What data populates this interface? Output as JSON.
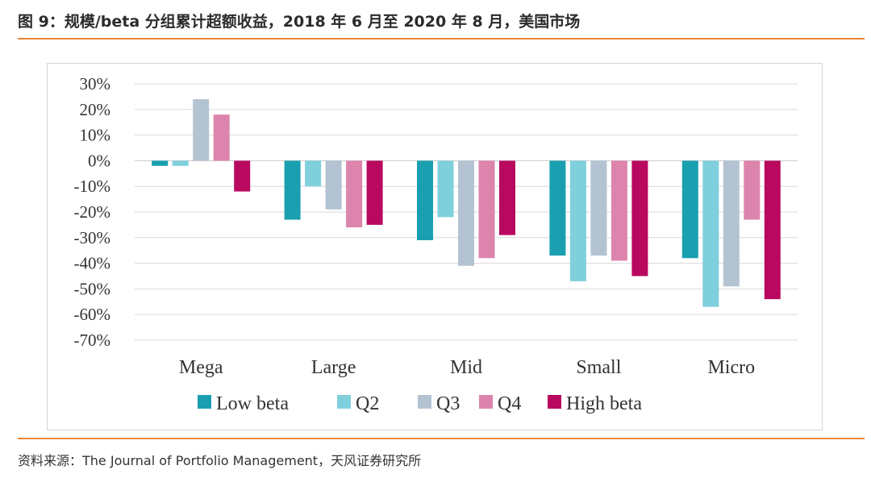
{
  "header": {
    "title": "图 9：规模/beta 分组累计超额收益，2018 年 6 月至 2020 年 8 月，美国市场"
  },
  "footer": {
    "source": "资料来源：The Journal of Portfolio Management，天风证券研究所"
  },
  "colors": {
    "accent_rule": "#e8873a",
    "series": [
      "#1a9fb0",
      "#7fd0dc",
      "#b4c3d2",
      "#dd84ad",
      "#b8095f"
    ]
  },
  "chart_data": {
    "type": "bar",
    "title": "",
    "xlabel": "",
    "ylabel": "",
    "categories": [
      "Mega",
      "Large",
      "Mid",
      "Small",
      "Micro"
    ],
    "series": [
      {
        "name": "Low beta",
        "values": [
          -2,
          -23,
          -31,
          -37,
          -38
        ]
      },
      {
        "name": "Q2",
        "values": [
          -2,
          -10,
          -22,
          -47,
          -57
        ]
      },
      {
        "name": "Q3",
        "values": [
          24,
          -19,
          -41,
          -37,
          -49
        ]
      },
      {
        "name": "Q4",
        "values": [
          18,
          -26,
          -38,
          -39,
          -23
        ]
      },
      {
        "name": "High beta",
        "values": [
          -12,
          -25,
          -29,
          -45,
          -54
        ]
      }
    ],
    "ylim": [
      -70,
      30
    ],
    "yticks": [
      30,
      20,
      10,
      0,
      -10,
      -20,
      -30,
      -40,
      -50,
      -60,
      -70
    ],
    "ytick_labels": [
      "30%",
      "20%",
      "10%",
      "0%",
      "-10%",
      "-20%",
      "-30%",
      "-40%",
      "-50%",
      "-60%",
      "-70%"
    ],
    "grid": true,
    "legend_position": "bottom"
  }
}
